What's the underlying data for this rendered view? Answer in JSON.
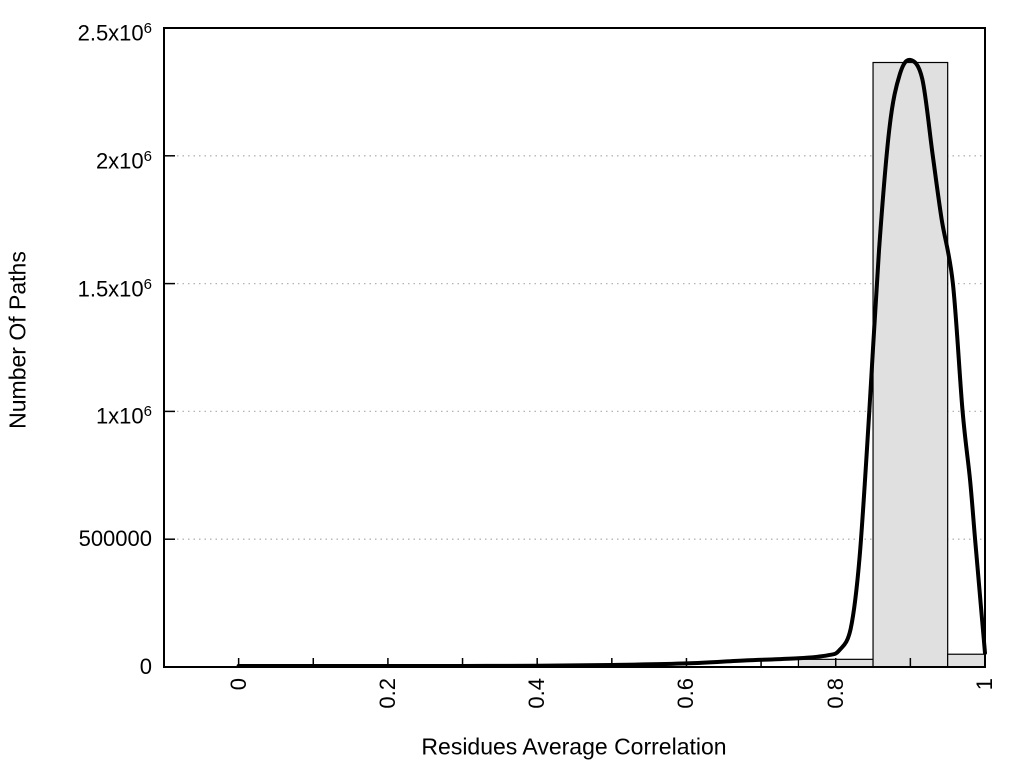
{
  "chart_data": {
    "type": "bar",
    "title": "",
    "xlabel": "Residues Average Correlation",
    "ylabel": "Number Of Paths",
    "xlim": [
      -0.1,
      1.0
    ],
    "ylim": [
      0,
      2500000
    ],
    "grid": "horizontal-dotted",
    "legend_position": "none",
    "colors": {
      "bar_fill": "#e0e0e0",
      "bar_border": "#000000",
      "curve": "#000000",
      "grid": "#b4b4b4",
      "border": "#000000"
    },
    "x_ticks": [
      {
        "v": 0.0,
        "label": "0"
      },
      {
        "v": 0.1,
        "label": ""
      },
      {
        "v": 0.2,
        "label": "0.2"
      },
      {
        "v": 0.3,
        "label": ""
      },
      {
        "v": 0.4,
        "label": "0.4"
      },
      {
        "v": 0.5,
        "label": ""
      },
      {
        "v": 0.6,
        "label": "0.6"
      },
      {
        "v": 0.7,
        "label": ""
      },
      {
        "v": 0.8,
        "label": "0.8"
      },
      {
        "v": 0.9,
        "label": ""
      },
      {
        "v": 1.0,
        "label": "1"
      }
    ],
    "y_ticks": [
      {
        "v": 0,
        "label": "0"
      },
      {
        "v": 500000,
        "label": "500000"
      },
      {
        "v": 1000000,
        "label": "1x10^6"
      },
      {
        "v": 1500000,
        "label": "1.5x10^6"
      },
      {
        "v": 2000000,
        "label": "2x10^6"
      },
      {
        "v": 2500000,
        "label": "2.5x10^6"
      }
    ],
    "bins": [
      {
        "center": 0.8,
        "left": 0.75,
        "right": 0.85,
        "count": 30000
      },
      {
        "center": 0.9,
        "left": 0.85,
        "right": 0.95,
        "count": 2365000
      },
      {
        "center": 1.0,
        "left": 0.95,
        "right": 1.0,
        "count": 50000
      }
    ],
    "curve_points": [
      [
        0.0,
        4000
      ],
      [
        0.1,
        4000
      ],
      [
        0.2,
        4000
      ],
      [
        0.3,
        4000
      ],
      [
        0.4,
        5000
      ],
      [
        0.5,
        8000
      ],
      [
        0.6,
        14000
      ],
      [
        0.68,
        26000
      ],
      [
        0.75,
        34000
      ],
      [
        0.79,
        46000
      ],
      [
        0.805,
        66000
      ],
      [
        0.82,
        150000
      ],
      [
        0.832,
        430000
      ],
      [
        0.845,
        1000000
      ],
      [
        0.858,
        1630000
      ],
      [
        0.872,
        2110000
      ],
      [
        0.886,
        2320000
      ],
      [
        0.9,
        2375000
      ],
      [
        0.916,
        2300000
      ],
      [
        0.93,
        2000000
      ],
      [
        0.942,
        1750000
      ],
      [
        0.957,
        1500000
      ],
      [
        0.97,
        1000000
      ],
      [
        0.98,
        730000
      ],
      [
        0.987,
        490000
      ],
      [
        0.995,
        220000
      ],
      [
        1.0,
        55000
      ]
    ]
  }
}
